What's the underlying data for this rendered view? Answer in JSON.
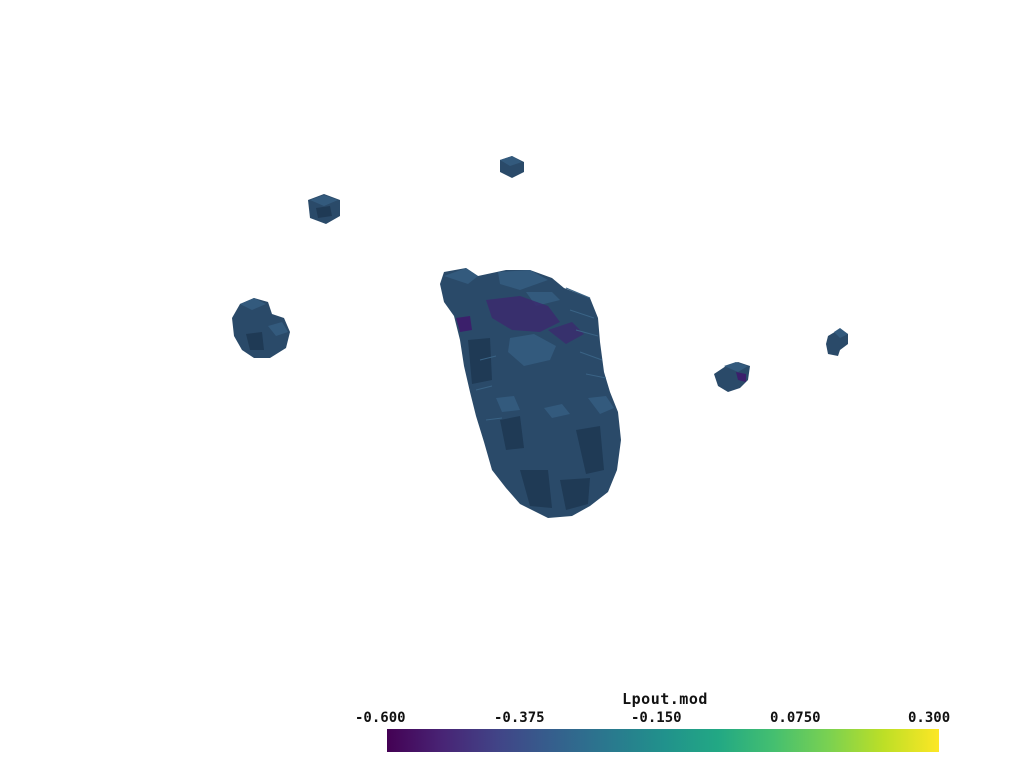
{
  "scalar_bar": {
    "title": "Lpout.mod",
    "ticks": [
      "-0.600",
      "-0.375",
      "-0.150",
      "0.0750",
      "0.300"
    ],
    "range": [
      -0.6,
      0.3
    ],
    "colormap": "viridis",
    "colors": [
      "#440154",
      "#414487",
      "#2a788e",
      "#22a884",
      "#7ad151",
      "#fde725"
    ]
  },
  "scene": {
    "voxel_color": "#2c4e6e",
    "voxel_highlight": "#34597d",
    "voxel_shadow": "#22405c",
    "accent_color": "#3b1f6b",
    "background": "#ffffff"
  }
}
